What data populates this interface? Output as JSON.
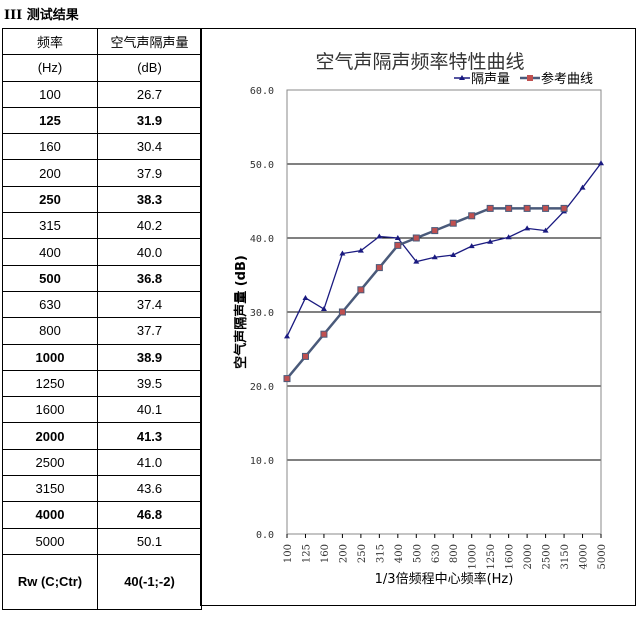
{
  "heading": "III 测试结果",
  "table": {
    "header": [
      [
        "频率",
        "空气声隔声量"
      ],
      [
        "(Hz)",
        "(dB)"
      ]
    ],
    "rows": [
      [
        "100",
        "26.7",
        false
      ],
      [
        "125",
        "31.9",
        true
      ],
      [
        "160",
        "30.4",
        false
      ],
      [
        "200",
        "37.9",
        false
      ],
      [
        "250",
        "38.3",
        true
      ],
      [
        "315",
        "40.2",
        false
      ],
      [
        "400",
        "40.0",
        false
      ],
      [
        "500",
        "36.8",
        true
      ],
      [
        "630",
        "37.4",
        false
      ],
      [
        "800",
        "37.7",
        false
      ],
      [
        "1000",
        "38.9",
        true
      ],
      [
        "1250",
        "39.5",
        false
      ],
      [
        "1600",
        "40.1",
        false
      ],
      [
        "2000",
        "41.3",
        true
      ],
      [
        "2500",
        "41.0",
        false
      ],
      [
        "3150",
        "43.6",
        false
      ],
      [
        "4000",
        "46.8",
        true
      ],
      [
        "5000",
        "50.1",
        false
      ]
    ],
    "footer": [
      "Rw (C;Ctr)",
      "40(-1;-2)"
    ]
  },
  "chart_data": {
    "type": "line",
    "title": "空气声隔声频率特性曲线",
    "xlabel": "1/3倍频程中心频率(Hz)",
    "ylabel": "空气声隔声量 (dB)",
    "ylim": [
      0,
      60
    ],
    "yticks": [
      "0.0",
      "10.0",
      "20.0",
      "30.0",
      "40.0",
      "50.0",
      "60.0"
    ],
    "categories": [
      "100",
      "125",
      "160",
      "200",
      "250",
      "315",
      "400",
      "500",
      "630",
      "800",
      "1000",
      "1250",
      "1600",
      "2000",
      "2500",
      "3150",
      "4000",
      "5000"
    ],
    "legend_position": "top-right",
    "series": [
      {
        "name": "隔声量",
        "color": "#1a1a80",
        "marker": "triangle",
        "values": [
          26.7,
          31.9,
          30.4,
          37.9,
          38.3,
          40.2,
          40.0,
          36.8,
          37.4,
          37.7,
          38.9,
          39.5,
          40.1,
          41.3,
          41.0,
          43.6,
          46.8,
          50.1
        ]
      },
      {
        "name": "参考曲线",
        "color": "#4a5a7a",
        "marker": "square",
        "marker_color": "#c05050",
        "values": [
          21,
          24,
          27,
          30,
          33,
          36,
          39,
          40,
          41,
          42,
          43,
          44,
          44,
          44,
          44,
          44,
          null,
          null
        ]
      }
    ]
  }
}
